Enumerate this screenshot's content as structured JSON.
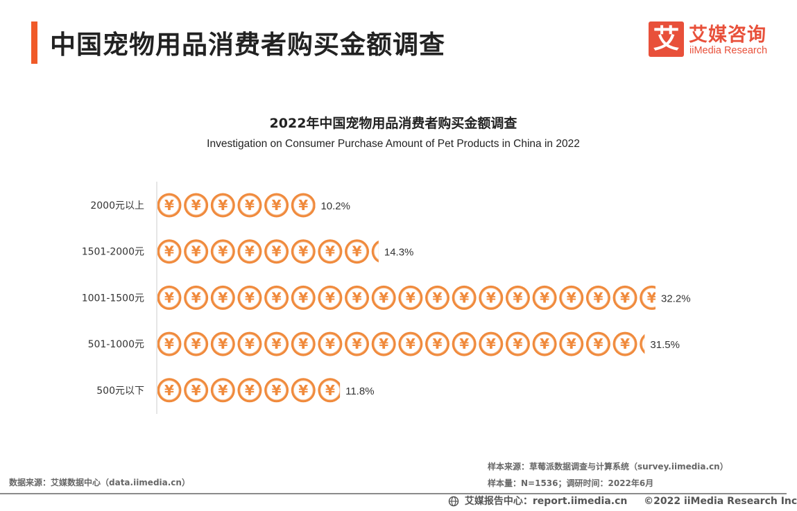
{
  "header": {
    "title": "中国宠物用品消费者购买金额调查",
    "accent_color": "#f05a28"
  },
  "logo": {
    "mark": "艾",
    "name_cn": "艾媒咨询",
    "name_en": "iiMedia Research",
    "color": "#e8503a"
  },
  "chart_data": {
    "type": "bar",
    "title": "2022年中国宠物用品消费者购买金额调查",
    "subtitle": "Investigation on Consumer Purchase Amount of Pet Products in China in 2022",
    "orientation": "horizontal",
    "marker": "yuan-coin-icon",
    "categories": [
      "2000元以上",
      "1501-2000元",
      "1001-1500元",
      "501-1000元",
      "500元以下"
    ],
    "values": [
      10.2,
      14.3,
      32.2,
      31.5,
      11.8
    ],
    "value_labels": [
      "10.2%",
      "14.3%",
      "32.2%",
      "31.5%",
      "11.8%"
    ],
    "unit": "%",
    "coin_color": "#f08a3c",
    "coin_border_color": "#f4b88a",
    "axis_color": "#cccccc"
  },
  "sources": {
    "data_source": "数据来源：艾媒数据中心（data.iimedia.cn）",
    "sample_source": "样本来源：草莓派数据调查与计算系统（survey.iimedia.cn）",
    "sample_info": "样本量：N=1536；调研时间：2022年6月"
  },
  "footer": {
    "report_center": "艾媒报告中心：report.iimedia.cn",
    "copyright": "©2022  iiMedia Research  Inc"
  }
}
